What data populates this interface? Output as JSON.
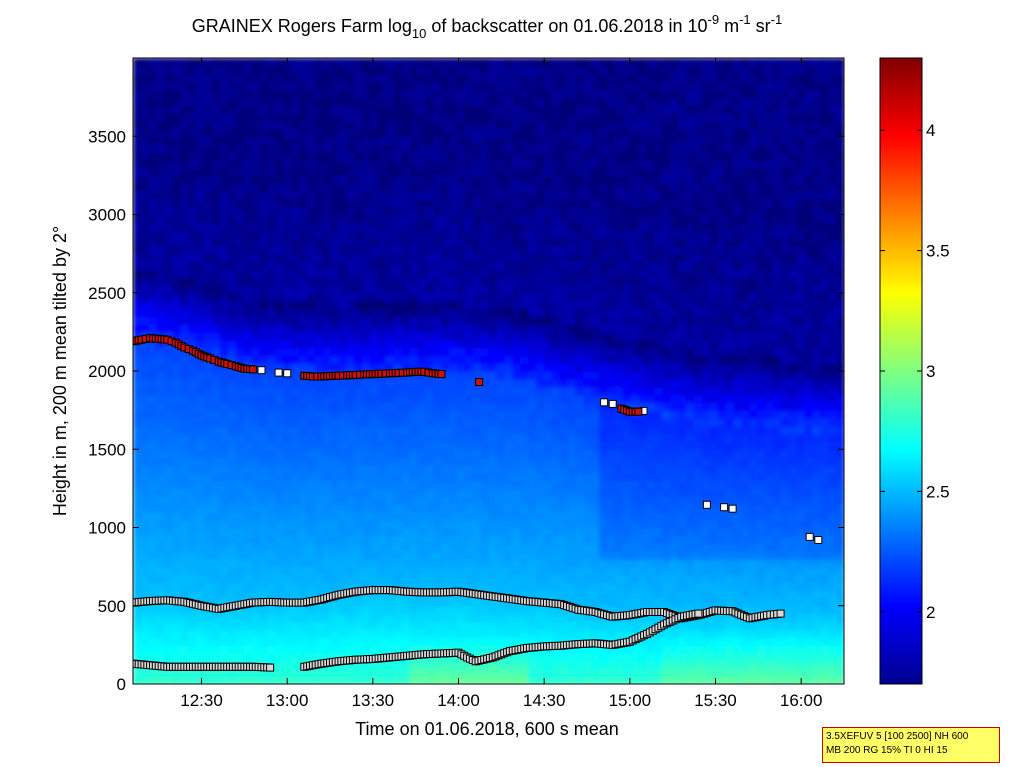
{
  "chart_data": {
    "type": "heatmap",
    "title": {
      "part1": "GRAINEX Rogers Farm log",
      "sub1": "10",
      "part2": " of backscatter on 01.06.2018 in 10",
      "sup1": "-9",
      "part3": " m",
      "sup2": "-1",
      "part4": " sr",
      "sup3": "-1"
    },
    "xlabel": "Time on 01.06.2018, 600 s mean",
    "ylabel": "Height in m, 200 m mean tilted by 2°",
    "xlim_hours": [
      12.1,
      16.25
    ],
    "ylim": [
      0,
      4000
    ],
    "xticks": [
      {
        "value": 12.5,
        "label": "12:30"
      },
      {
        "value": 13.0,
        "label": "13:00"
      },
      {
        "value": 13.5,
        "label": "13:30"
      },
      {
        "value": 14.0,
        "label": "14:00"
      },
      {
        "value": 14.5,
        "label": "14:30"
      },
      {
        "value": 15.0,
        "label": "15:00"
      },
      {
        "value": 15.5,
        "label": "15:30"
      },
      {
        "value": 16.0,
        "label": "16:00"
      }
    ],
    "yticks": [
      {
        "value": 0,
        "label": "0"
      },
      {
        "value": 500,
        "label": "500"
      },
      {
        "value": 1000,
        "label": "1000"
      },
      {
        "value": 1500,
        "label": "1500"
      },
      {
        "value": 2000,
        "label": "2000"
      },
      {
        "value": 2500,
        "label": "2500"
      },
      {
        "value": 3000,
        "label": "3000"
      },
      {
        "value": 3500,
        "label": "3500"
      }
    ],
    "colorbar": {
      "range": [
        1.7,
        4.3
      ],
      "ticks": [
        {
          "value": 2,
          "label": "2"
        },
        {
          "value": 2.5,
          "label": "2.5"
        },
        {
          "value": 3,
          "label": "3"
        },
        {
          "value": 3.5,
          "label": "3.5"
        },
        {
          "value": 4,
          "label": "4"
        }
      ],
      "colormap": "jet"
    },
    "boundary_layer_top": [
      [
        12.1,
        2190
      ],
      [
        12.2,
        2210
      ],
      [
        12.3,
        2200
      ],
      [
        12.4,
        2150
      ],
      [
        12.5,
        2100
      ],
      [
        12.6,
        2060
      ],
      [
        12.7,
        2030
      ],
      [
        12.8,
        2010
      ],
      [
        12.9,
        1995
      ],
      [
        13.0,
        1985
      ],
      [
        13.1,
        1970
      ],
      [
        13.2,
        1965
      ],
      [
        13.3,
        1970
      ],
      [
        13.4,
        1975
      ],
      [
        13.5,
        1980
      ],
      [
        13.6,
        1985
      ],
      [
        13.7,
        1990
      ],
      [
        13.8,
        1995
      ],
      [
        13.9,
        1980
      ],
      [
        13.95,
        1990
      ]
    ],
    "aerosol_top": [
      [
        12.1,
        2190
      ],
      [
        12.15,
        2200
      ],
      [
        12.2,
        2210
      ],
      [
        12.25,
        2205
      ],
      [
        12.3,
        2200
      ],
      [
        12.35,
        2180
      ],
      [
        12.4,
        2150
      ],
      [
        12.45,
        2130
      ],
      [
        12.5,
        2100
      ],
      [
        12.55,
        2080
      ],
      [
        12.6,
        2060
      ],
      [
        12.65,
        2045
      ],
      [
        12.7,
        2030
      ],
      [
        12.75,
        2015
      ],
      [
        12.8,
        2010
      ],
      [
        13.1,
        1970
      ],
      [
        13.15,
        1965
      ],
      [
        13.2,
        1965
      ],
      [
        13.25,
        1968
      ],
      [
        13.3,
        1970
      ],
      [
        13.35,
        1972
      ],
      [
        13.4,
        1975
      ],
      [
        13.45,
        1978
      ],
      [
        13.5,
        1980
      ],
      [
        13.55,
        1983
      ],
      [
        13.6,
        1985
      ],
      [
        13.65,
        1988
      ],
      [
        13.7,
        1990
      ],
      [
        13.75,
        1995
      ],
      [
        13.8,
        1995
      ],
      [
        13.85,
        1985
      ],
      [
        13.9,
        1980
      ],
      [
        14.12,
        1930
      ],
      [
        14.95,
        1760
      ],
      [
        15.0,
        1740
      ],
      [
        15.05,
        1740
      ]
    ],
    "upper_layer_markers": [
      [
        12.85,
        2005
      ],
      [
        12.95,
        1990
      ],
      [
        13.0,
        1985
      ],
      [
        14.85,
        1800
      ],
      [
        14.9,
        1790
      ],
      [
        15.08,
        1745
      ],
      [
        15.45,
        1145
      ],
      [
        15.55,
        1130
      ],
      [
        15.6,
        1120
      ],
      [
        16.05,
        940
      ],
      [
        16.1,
        920
      ]
    ],
    "mixing_layer": [
      [
        12.1,
        520
      ],
      [
        12.2,
        530
      ],
      [
        12.3,
        535
      ],
      [
        12.4,
        525
      ],
      [
        12.5,
        500
      ],
      [
        12.6,
        480
      ],
      [
        12.7,
        500
      ],
      [
        12.8,
        520
      ],
      [
        12.9,
        525
      ],
      [
        13.0,
        520
      ],
      [
        13.1,
        520
      ],
      [
        13.2,
        540
      ],
      [
        13.3,
        570
      ],
      [
        13.4,
        590
      ],
      [
        13.5,
        600
      ],
      [
        13.6,
        600
      ],
      [
        13.7,
        590
      ],
      [
        13.8,
        585
      ],
      [
        13.9,
        585
      ],
      [
        14.0,
        590
      ],
      [
        14.1,
        575
      ],
      [
        14.2,
        560
      ],
      [
        14.3,
        545
      ],
      [
        14.4,
        530
      ],
      [
        14.5,
        520
      ],
      [
        14.6,
        510
      ],
      [
        14.7,
        475
      ],
      [
        14.8,
        460
      ],
      [
        14.9,
        430
      ],
      [
        15.0,
        440
      ],
      [
        15.1,
        460
      ],
      [
        15.2,
        460
      ],
      [
        15.3,
        420
      ],
      [
        15.4,
        440
      ],
      [
        15.5,
        470
      ],
      [
        15.6,
        465
      ],
      [
        15.7,
        420
      ],
      [
        15.8,
        440
      ],
      [
        15.88,
        450
      ]
    ],
    "surface_layer": [
      [
        12.1,
        130
      ],
      [
        12.2,
        120
      ],
      [
        12.3,
        110
      ],
      [
        12.4,
        110
      ],
      [
        12.5,
        110
      ],
      [
        12.6,
        110
      ],
      [
        12.7,
        110
      ],
      [
        12.8,
        110
      ],
      [
        12.9,
        105
      ],
      [
        13.1,
        110
      ],
      [
        13.2,
        130
      ],
      [
        13.3,
        145
      ],
      [
        13.4,
        155
      ],
      [
        13.5,
        160
      ],
      [
        13.6,
        170
      ],
      [
        13.7,
        180
      ],
      [
        13.8,
        190
      ],
      [
        13.9,
        195
      ],
      [
        14.0,
        200
      ],
      [
        14.05,
        170
      ],
      [
        14.1,
        145
      ],
      [
        14.2,
        170
      ],
      [
        14.3,
        210
      ],
      [
        14.4,
        230
      ],
      [
        14.5,
        240
      ],
      [
        14.6,
        245
      ],
      [
        14.7,
        255
      ],
      [
        14.8,
        260
      ],
      [
        14.9,
        250
      ],
      [
        15.0,
        270
      ],
      [
        15.1,
        320
      ],
      [
        15.2,
        380
      ],
      [
        15.3,
        430
      ],
      [
        15.4,
        450
      ]
    ]
  },
  "info_box": {
    "line1": "3.5XEFUV 5 [100 2500] NH 600",
    "line2": "MB 200 RG 15% TI 0 HI 15"
  }
}
